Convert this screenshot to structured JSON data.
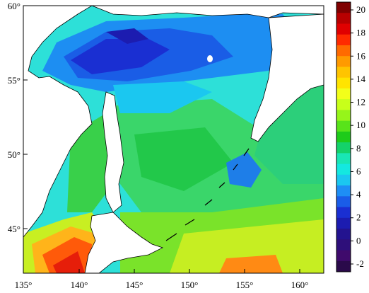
{
  "map": {
    "lon_ticks": [
      "135°",
      "140°",
      "145°",
      "150°",
      "155°",
      "160°"
    ],
    "lat_ticks": [
      "60°",
      "55°",
      "50°",
      "45°"
    ]
  },
  "colorbar": {
    "labels": [
      "20",
      "18",
      "16",
      "14",
      "12",
      "10",
      "8",
      "6",
      "4",
      "2",
      "0",
      "-2"
    ],
    "colors": [
      "#7f0000",
      "#b80000",
      "#e00000",
      "#ff2a00",
      "#ff6a00",
      "#ff9a00",
      "#ffc400",
      "#ffe400",
      "#f2ff1a",
      "#c8ff1a",
      "#96f51a",
      "#58e31a",
      "#1ecb1a",
      "#14d26a",
      "#19e6b4",
      "#14e8e0",
      "#1bc7f0",
      "#1e8ef5",
      "#1a5de8",
      "#1a2fd2",
      "#1c1cb0",
      "#23138f",
      "#2e0f7a",
      "#3f0a6c",
      "#2a0a4a"
    ],
    "min": -2,
    "max": 20
  }
}
